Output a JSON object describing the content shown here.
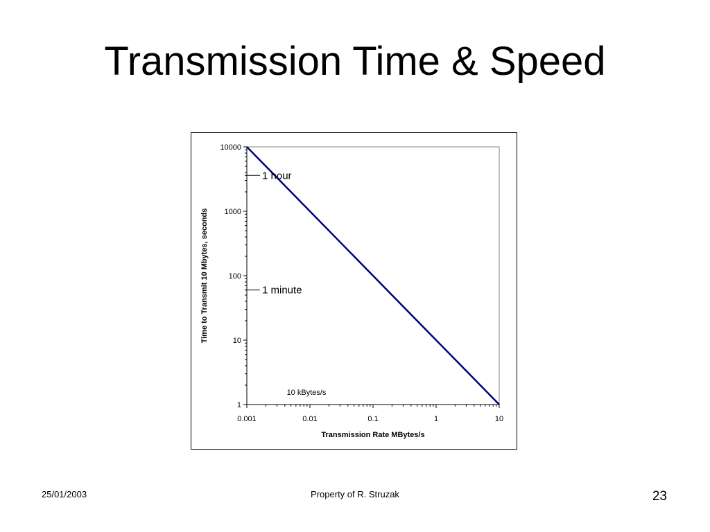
{
  "slide": {
    "title": "Transmission Time & Speed",
    "footer_date": "25/01/2003",
    "footer_owner": "Property of R. Struzak",
    "page_number": "23"
  },
  "chart_data": {
    "type": "line",
    "xlabel": "Transmission Rate MBytes/s",
    "ylabel": "Time to Transmit 10 Mbytes, seconds",
    "x_scale": "log",
    "y_scale": "log",
    "xlim": [
      0.001,
      10
    ],
    "ylim": [
      1,
      10000
    ],
    "x_ticks": [
      "0.001",
      "0.01",
      "0.1",
      "1",
      "10"
    ],
    "y_ticks": [
      "1",
      "10",
      "100",
      "1000",
      "10000"
    ],
    "grid": false,
    "line_color": "#000080",
    "series": [
      {
        "x": [
          0.001,
          10
        ],
        "y": [
          10000,
          1
        ]
      }
    ],
    "annotations": [
      {
        "text": "1 hour",
        "y": 3600
      },
      {
        "text": "1 minute",
        "y": 60
      },
      {
        "text": "10 kBytes/s",
        "x": 0.01
      }
    ]
  }
}
